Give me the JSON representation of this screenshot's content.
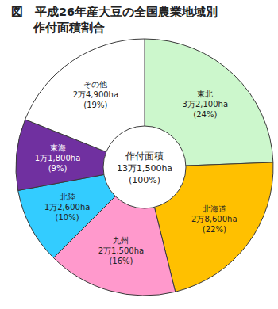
{
  "chart_data": {
    "type": "pie",
    "title": [
      "図　平成26年産大豆の全国農業地域別",
      "作付面積割合"
    ],
    "categories": [
      "東北",
      "北海道",
      "九州",
      "北陸",
      "東海",
      "その他"
    ],
    "values": [
      32100,
      28600,
      21500,
      12600,
      11800,
      24900
    ],
    "value_labels": [
      "3万2,100ha",
      "2万8,600ha",
      "2万1,500ha",
      "1万2,600ha",
      "1万1,800ha",
      "2万4,900ha"
    ],
    "percent_labels": [
      "(24%)",
      "(22%)",
      "(16%)",
      "(10%)",
      "(9%)",
      "(19%)"
    ],
    "colors": [
      "#ccf7cc",
      "#ffc000",
      "#ff99cc",
      "#33ccff",
      "#7030a0",
      "#ffffff"
    ],
    "data_labels": true,
    "center": {
      "label": "作付面積",
      "value_label": "13万1,500ha",
      "percent_label": "(100%)"
    }
  }
}
